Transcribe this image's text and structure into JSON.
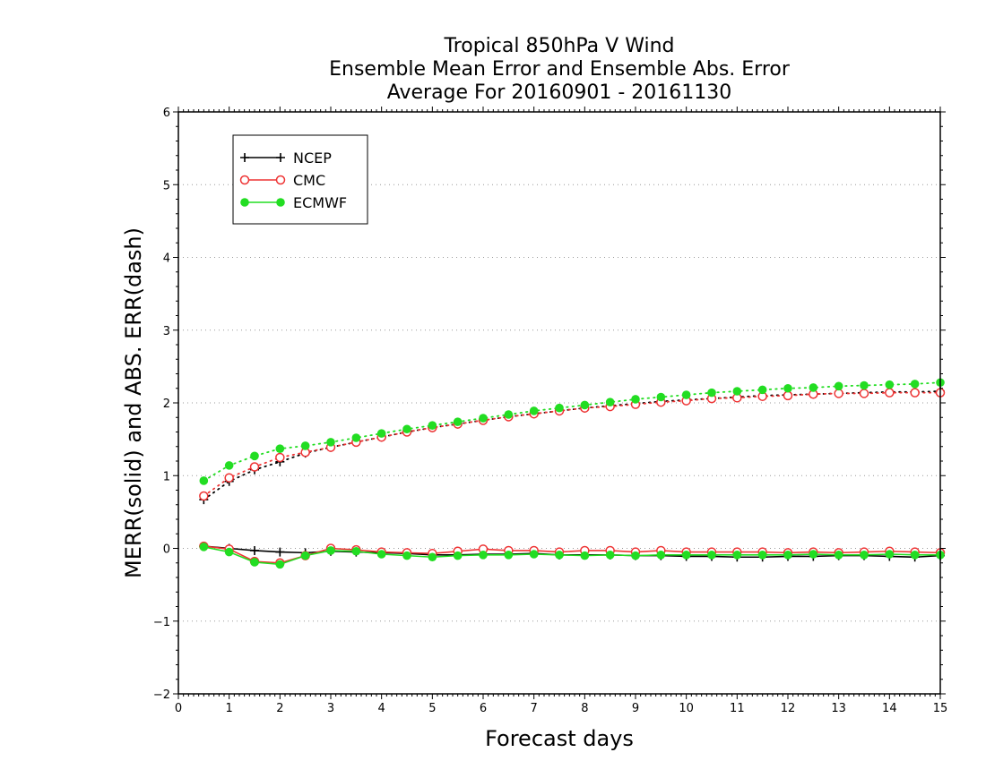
{
  "chart_data": {
    "type": "line",
    "title": [
      "Tropical 850hPa V Wind",
      "Ensemble Mean Error and Ensemble Abs. Error",
      "Average For 20160901 - 20161130"
    ],
    "xlabel": "Forecast days",
    "ylabel": "MERR(solid) and ABS. ERR(dash)",
    "xlim": [
      0,
      15
    ],
    "ylim": [
      -2,
      6
    ],
    "xticks": [
      "0",
      "1",
      "2",
      "3",
      "4",
      "5",
      "6",
      "7",
      "8",
      "9",
      "10",
      "11",
      "12",
      "13",
      "14",
      "15"
    ],
    "yticks": [
      "−2",
      "−1",
      "0",
      "1",
      "2",
      "3",
      "4",
      "5",
      "6"
    ],
    "grid": "horizontal dotted",
    "legend_position": "top-left",
    "x": [
      0.5,
      1,
      1.5,
      2,
      2.5,
      3,
      3.5,
      4,
      4.5,
      5,
      5.5,
      6,
      6.5,
      7,
      7.5,
      8,
      8.5,
      9,
      9.5,
      10,
      10.5,
      11,
      11.5,
      12,
      12.5,
      13,
      13.5,
      14,
      14.5,
      15
    ],
    "series": [
      {
        "name": "NCEP",
        "color": "#000000",
        "marker": "plus",
        "merr": [
          0.03,
          0.0,
          -0.03,
          -0.05,
          -0.06,
          -0.04,
          -0.05,
          -0.06,
          -0.07,
          -0.09,
          -0.09,
          -0.08,
          -0.08,
          -0.07,
          -0.09,
          -0.09,
          -0.09,
          -0.1,
          -0.1,
          -0.11,
          -0.11,
          -0.12,
          -0.12,
          -0.11,
          -0.11,
          -0.1,
          -0.1,
          -0.11,
          -0.12,
          -0.1
        ],
        "abs_err": [
          0.67,
          0.92,
          1.08,
          1.19,
          1.31,
          1.39,
          1.46,
          1.53,
          1.6,
          1.66,
          1.71,
          1.76,
          1.81,
          1.85,
          1.89,
          1.93,
          1.96,
          1.99,
          2.02,
          2.04,
          2.06,
          2.08,
          2.1,
          2.11,
          2.12,
          2.13,
          2.14,
          2.15,
          2.15,
          2.16
        ]
      },
      {
        "name": "CMC",
        "color": "#ee3333",
        "marker": "open-circle",
        "merr": [
          0.03,
          -0.01,
          -0.18,
          -0.2,
          -0.1,
          0.0,
          -0.02,
          -0.05,
          -0.06,
          -0.07,
          -0.04,
          -0.01,
          -0.03,
          -0.03,
          -0.05,
          -0.03,
          -0.03,
          -0.05,
          -0.03,
          -0.05,
          -0.05,
          -0.05,
          -0.05,
          -0.06,
          -0.05,
          -0.06,
          -0.05,
          -0.04,
          -0.05,
          -0.06
        ],
        "abs_err": [
          0.72,
          0.97,
          1.12,
          1.25,
          1.32,
          1.39,
          1.46,
          1.53,
          1.6,
          1.66,
          1.71,
          1.76,
          1.81,
          1.85,
          1.89,
          1.93,
          1.95,
          1.98,
          2.01,
          2.03,
          2.06,
          2.07,
          2.09,
          2.1,
          2.12,
          2.13,
          2.13,
          2.14,
          2.14,
          2.14
        ]
      },
      {
        "name": "ECMWF",
        "color": "#22dd22",
        "marker": "filled-circle",
        "merr": [
          0.02,
          -0.05,
          -0.19,
          -0.22,
          -0.1,
          -0.03,
          -0.04,
          -0.08,
          -0.1,
          -0.12,
          -0.1,
          -0.09,
          -0.09,
          -0.08,
          -0.09,
          -0.1,
          -0.09,
          -0.1,
          -0.09,
          -0.09,
          -0.09,
          -0.09,
          -0.09,
          -0.09,
          -0.08,
          -0.09,
          -0.09,
          -0.08,
          -0.09,
          -0.09
        ],
        "abs_err": [
          0.93,
          1.14,
          1.27,
          1.37,
          1.41,
          1.46,
          1.52,
          1.58,
          1.64,
          1.69,
          1.74,
          1.79,
          1.84,
          1.89,
          1.93,
          1.97,
          2.01,
          2.05,
          2.08,
          2.11,
          2.14,
          2.16,
          2.18,
          2.2,
          2.21,
          2.23,
          2.24,
          2.25,
          2.26,
          2.28
        ]
      }
    ]
  }
}
